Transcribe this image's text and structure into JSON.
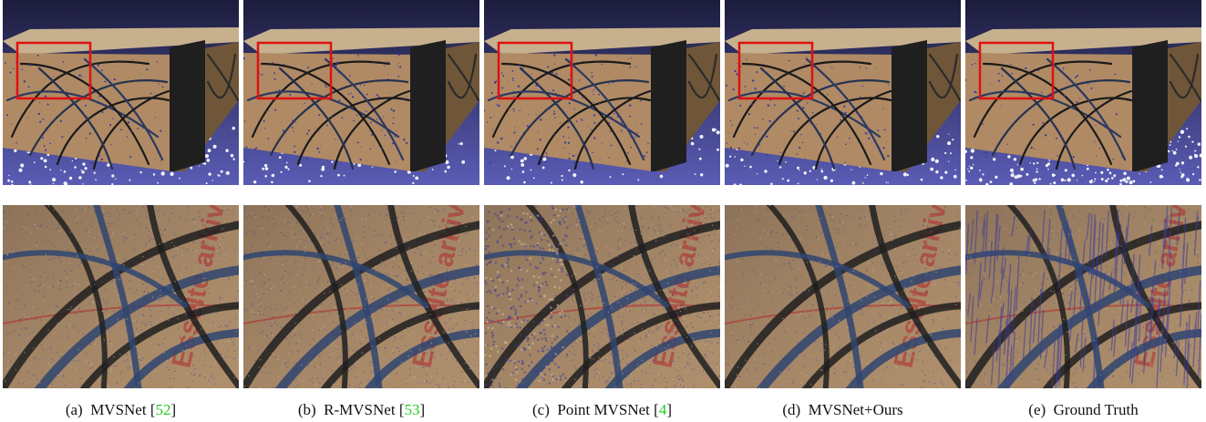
{
  "figure": {
    "captions": [
      {
        "prefix": "(a)",
        "method": "MVSNet",
        "cite": "52"
      },
      {
        "prefix": "(b)",
        "method": "R-MVSNet",
        "cite": "53"
      },
      {
        "prefix": "(c)",
        "method": "Point MVSNet",
        "cite": "4"
      },
      {
        "prefix": "(d)",
        "method": "MVSNet+Ours",
        "cite": ""
      },
      {
        "prefix": "(e)",
        "method": "Ground Truth",
        "cite": ""
      }
    ],
    "box_printed_text": "Esselte arkiv"
  },
  "colors": {
    "background_gradient_top": "#1c1c3c",
    "background_gradient_bottom": "#5a5cb5",
    "box_face": "#b08a65",
    "box_shade": "#6f5638",
    "tape": "#1f1f1f",
    "highlight_box": "#e01010",
    "noise_points": "#3a3a9a",
    "citation": "#22cc22"
  }
}
